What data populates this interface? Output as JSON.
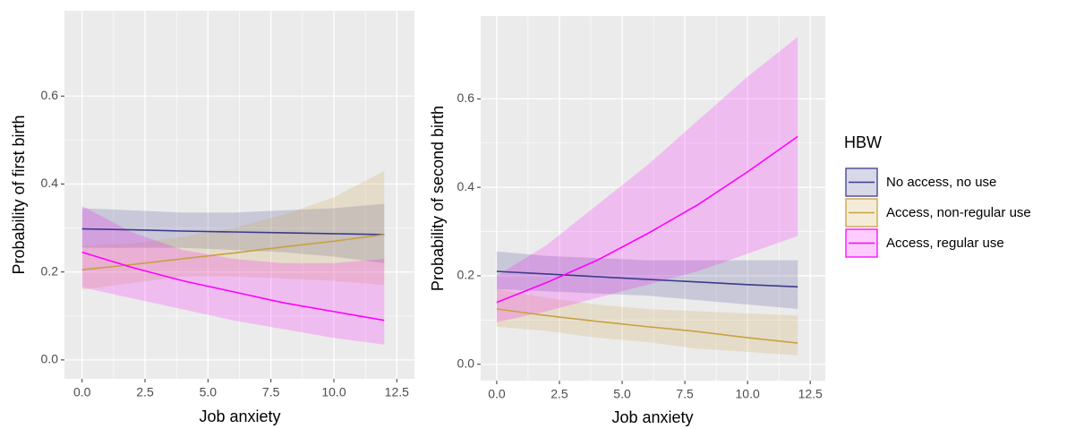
{
  "chart_data": [
    {
      "type": "line",
      "xlabel": "Job anxiety",
      "ylabel": "Probability of first birth",
      "legend_title": "HBW",
      "legend": "right",
      "grid": true,
      "xlim": [
        -0.7,
        13.2
      ],
      "ylim": [
        -0.043,
        0.794
      ],
      "xticks": [
        {
          "value": 0,
          "label": "0.0"
        },
        2.5,
        {
          "value": 5,
          "label": "5.0"
        },
        7.5,
        {
          "value": 10,
          "label": "10.0"
        },
        12.5
      ],
      "yticks": [
        {
          "value": 0,
          "label": "0.0"
        },
        0.2,
        0.4,
        0.6
      ],
      "x": [
        0,
        2,
        4,
        6,
        8,
        10,
        12
      ],
      "series": [
        {
          "name": "No access, no use",
          "color": "#3b3b8a",
          "values": [
            0.298,
            0.296,
            0.293,
            0.291,
            0.289,
            0.287,
            0.285
          ],
          "upper": [
            0.345,
            0.34,
            0.335,
            0.335,
            0.34,
            0.345,
            0.355
          ],
          "lower": [
            0.255,
            0.255,
            0.255,
            0.25,
            0.245,
            0.235,
            0.22
          ]
        },
        {
          "name": "Access, non-regular use",
          "color": "#c9a042",
          "values": [
            0.205,
            0.217,
            0.23,
            0.243,
            0.257,
            0.27,
            0.285
          ],
          "upper": [
            0.26,
            0.265,
            0.28,
            0.3,
            0.33,
            0.37,
            0.43
          ],
          "lower": [
            0.16,
            0.175,
            0.19,
            0.19,
            0.185,
            0.18,
            0.17
          ]
        },
        {
          "name": "Access, regular use",
          "color": "#ff00ff",
          "values": [
            0.245,
            0.21,
            0.18,
            0.155,
            0.13,
            0.11,
            0.09
          ],
          "upper": [
            0.35,
            0.29,
            0.25,
            0.23,
            0.22,
            0.22,
            0.23
          ],
          "lower": [
            0.165,
            0.14,
            0.115,
            0.09,
            0.07,
            0.05,
            0.035
          ]
        }
      ]
    },
    {
      "type": "line",
      "xlabel": "Job anxiety",
      "ylabel": "Probability of second birth",
      "grid": true,
      "xlim": [
        -0.64,
        13.1
      ],
      "ylim": [
        -0.037,
        0.787
      ],
      "xticks": [
        {
          "value": 0,
          "label": "0.0"
        },
        2.5,
        {
          "value": 5,
          "label": "5.0"
        },
        7.5,
        {
          "value": 10,
          "label": "10.0"
        },
        12.5
      ],
      "yticks": [
        {
          "value": 0,
          "label": "0.0"
        },
        0.2,
        0.4,
        0.6
      ],
      "x": [
        0,
        2,
        4,
        6,
        8,
        10,
        12
      ],
      "series": [
        {
          "name": "No access, no use",
          "color": "#3b3b8a",
          "values": [
            0.21,
            0.204,
            0.198,
            0.192,
            0.186,
            0.18,
            0.175
          ],
          "upper": [
            0.255,
            0.245,
            0.24,
            0.235,
            0.235,
            0.235,
            0.235
          ],
          "lower": [
            0.17,
            0.165,
            0.16,
            0.155,
            0.145,
            0.135,
            0.125
          ]
        },
        {
          "name": "Access, non-regular use",
          "color": "#c9a042",
          "values": [
            0.125,
            0.11,
            0.097,
            0.085,
            0.074,
            0.06,
            0.048
          ],
          "upper": [
            0.17,
            0.15,
            0.135,
            0.125,
            0.12,
            0.115,
            0.11
          ],
          "lower": [
            0.085,
            0.075,
            0.06,
            0.05,
            0.035,
            0.028,
            0.02
          ]
        },
        {
          "name": "Access, regular use",
          "color": "#ff00ff",
          "values": [
            0.14,
            0.185,
            0.235,
            0.295,
            0.36,
            0.435,
            0.515
          ],
          "upper": [
            0.2,
            0.27,
            0.36,
            0.45,
            0.55,
            0.65,
            0.74
          ],
          "lower": [
            0.095,
            0.12,
            0.15,
            0.18,
            0.21,
            0.25,
            0.29
          ]
        }
      ]
    }
  ]
}
